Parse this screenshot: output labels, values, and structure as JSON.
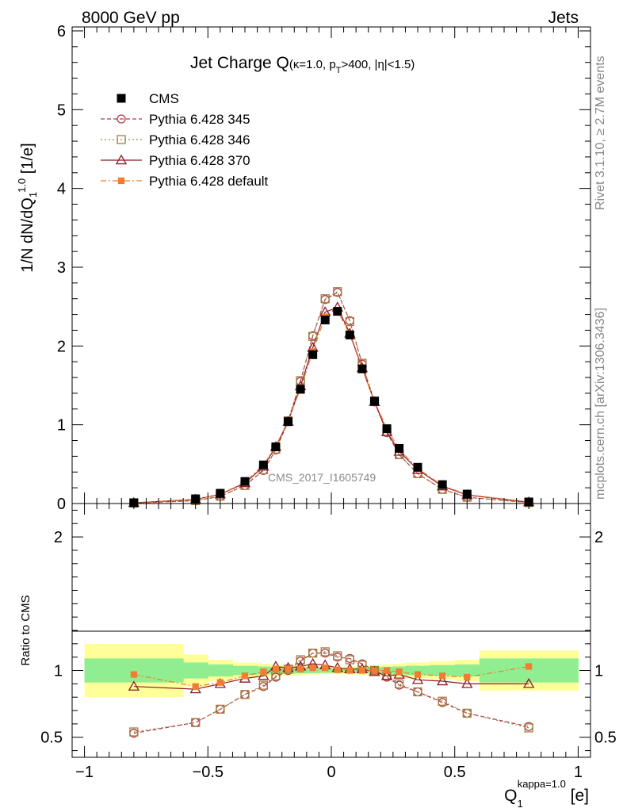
{
  "header": {
    "left": "8000 GeV pp",
    "right": "Jets"
  },
  "side_labels": {
    "rivet": "Rivet 3.1.10, ≥ 2.7M events",
    "mcplots": "mcplots.cern.ch [arXiv:1306.3436]"
  },
  "chart_data": [
    {
      "type": "scatter",
      "panel": "main",
      "title_parts": {
        "main": "Jet Charge Q",
        "params_a": "(κ=1.0, p",
        "params_sub": "T",
        "params_b": ">400, |η|<1.5)"
      },
      "ylabel_parts": {
        "a": "1/N dN/dQ",
        "sub": "1",
        "sup": "1.0",
        "b": " [1/e]"
      },
      "analysis_label": "CMS_2017_I1605749",
      "xlim": [
        -1.05,
        1.05
      ],
      "ylim": [
        0,
        6.05
      ],
      "y_ticks": [
        "0",
        "1",
        "2",
        "3",
        "4",
        "5",
        "6"
      ],
      "x": [
        -0.8,
        -0.55,
        -0.45,
        -0.35,
        -0.275,
        -0.225,
        -0.175,
        -0.125,
        -0.075,
        -0.025,
        0.025,
        0.075,
        0.125,
        0.175,
        0.225,
        0.275,
        0.35,
        0.45,
        0.55,
        0.8
      ],
      "series": [
        {
          "name": "CMS",
          "color": "#000000",
          "marker": "filled-square",
          "values": [
            0.01,
            0.06,
            0.13,
            0.28,
            0.49,
            0.72,
            1.04,
            1.45,
            1.89,
            2.33,
            2.44,
            2.14,
            1.71,
            1.3,
            0.95,
            0.7,
            0.46,
            0.24,
            0.12,
            0.02
          ]
        },
        {
          "name": "Pythia 6.428 345",
          "color": "#b03a48",
          "marker": "open-circle",
          "line": "dashed",
          "values": [
            0.005,
            0.036,
            0.092,
            0.23,
            0.42,
            0.68,
            1.04,
            1.55,
            2.13,
            2.59,
            2.68,
            2.32,
            1.77,
            1.29,
            0.9,
            0.62,
            0.38,
            0.18,
            0.08,
            0.012
          ]
        },
        {
          "name": "Pythia 6.428 346",
          "color": "#a08040",
          "marker": "open-square",
          "line": "dotted",
          "values": [
            0.006,
            0.037,
            0.093,
            0.23,
            0.43,
            0.69,
            1.05,
            1.56,
            2.12,
            2.6,
            2.69,
            2.31,
            1.78,
            1.3,
            0.91,
            0.62,
            0.38,
            0.18,
            0.08,
            0.012
          ]
        },
        {
          "name": "Pythia 6.428 370",
          "color": "#8b1a2a",
          "marker": "open-triangle",
          "line": "solid",
          "values": [
            0.009,
            0.052,
            0.118,
            0.26,
            0.47,
            0.72,
            1.04,
            1.49,
            1.98,
            2.43,
            2.49,
            2.16,
            1.72,
            1.29,
            0.91,
            0.66,
            0.43,
            0.22,
            0.108,
            0.018
          ]
        },
        {
          "name": "Pythia 6.428 default",
          "color": "#f07d32",
          "marker": "filled-square-small",
          "line": "dashdot",
          "values": [
            0.0097,
            0.053,
            0.119,
            0.27,
            0.49,
            0.73,
            1.05,
            1.46,
            1.93,
            2.37,
            2.45,
            2.14,
            1.71,
            1.3,
            0.95,
            0.69,
            0.445,
            0.23,
            0.114,
            0.0206
          ]
        }
      ]
    },
    {
      "type": "scatter",
      "panel": "ratio",
      "ylabel": "Ratio to CMS",
      "xlabel_parts": {
        "a": "Q",
        "sub": "1",
        "sup": "kappa=1.0",
        "b": " [e]"
      },
      "xlim": [
        -1.05,
        1.05
      ],
      "ylim": [
        0.35,
        2.25
      ],
      "x_ticks": [
        "−1",
        "−0.5",
        "0",
        "0.5",
        "1"
      ],
      "y_ticks": [
        "0.5",
        "1",
        "2"
      ],
      "x": [
        -0.8,
        -0.55,
        -0.45,
        -0.35,
        -0.275,
        -0.225,
        -0.175,
        -0.125,
        -0.075,
        -0.025,
        0.025,
        0.075,
        0.125,
        0.175,
        0.225,
        0.275,
        0.35,
        0.45,
        0.55,
        0.8
      ],
      "bands": {
        "bin_edges": [
          -1.0,
          -0.6,
          -0.5,
          -0.4,
          -0.3,
          -0.25,
          -0.2,
          -0.15,
          -0.1,
          -0.05,
          0.0,
          0.05,
          0.1,
          0.15,
          0.2,
          0.25,
          0.3,
          0.4,
          0.5,
          0.6,
          1.0
        ],
        "inner": [
          0.09,
          0.06,
          0.045,
          0.035,
          0.03,
          0.028,
          0.025,
          0.022,
          0.02,
          0.018,
          0.018,
          0.02,
          0.022,
          0.025,
          0.028,
          0.03,
          0.035,
          0.04,
          0.045,
          0.09
        ],
        "outer": [
          0.2,
          0.12,
          0.08,
          0.06,
          0.05,
          0.045,
          0.04,
          0.035,
          0.03,
          0.028,
          0.028,
          0.03,
          0.035,
          0.04,
          0.045,
          0.05,
          0.06,
          0.07,
          0.08,
          0.15
        ],
        "inner_color": "#90ee90",
        "outer_color": "#ffff99"
      },
      "series": [
        {
          "name": "Pythia 6.428 345",
          "color": "#b03a48",
          "marker": "open-circle",
          "line": "dashed",
          "values": [
            0.53,
            0.61,
            0.71,
            0.82,
            0.88,
            0.95,
            1.0,
            1.07,
            1.13,
            1.13,
            1.1,
            1.09,
            1.05,
            1.0,
            0.95,
            0.89,
            0.84,
            0.76,
            0.68,
            0.58
          ]
        },
        {
          "name": "Pythia 6.428 346",
          "color": "#a08040",
          "marker": "open-square",
          "line": "dotted",
          "values": [
            0.54,
            0.61,
            0.71,
            0.82,
            0.89,
            0.96,
            1.01,
            1.08,
            1.13,
            1.14,
            1.11,
            1.08,
            1.04,
            1.0,
            0.96,
            0.9,
            0.84,
            0.77,
            0.68,
            0.57
          ]
        },
        {
          "name": "Pythia 6.428 370",
          "color": "#8b1a2a",
          "marker": "open-triangle",
          "line": "solid",
          "values": [
            0.88,
            0.86,
            0.9,
            0.94,
            0.96,
            1.03,
            1.02,
            1.03,
            1.05,
            1.04,
            1.02,
            1.01,
            1.01,
            0.99,
            0.96,
            0.97,
            0.93,
            0.92,
            0.9,
            0.9
          ]
        },
        {
          "name": "Pythia 6.428 default",
          "color": "#f07d32",
          "marker": "filled-square-small",
          "line": "dashdot",
          "values": [
            0.97,
            0.88,
            0.91,
            0.96,
            0.99,
            1.01,
            1.01,
            1.01,
            1.02,
            1.02,
            1.005,
            1.0,
            1.0,
            1.0,
            1.0,
            0.99,
            0.97,
            0.96,
            0.95,
            1.03
          ]
        }
      ]
    }
  ]
}
